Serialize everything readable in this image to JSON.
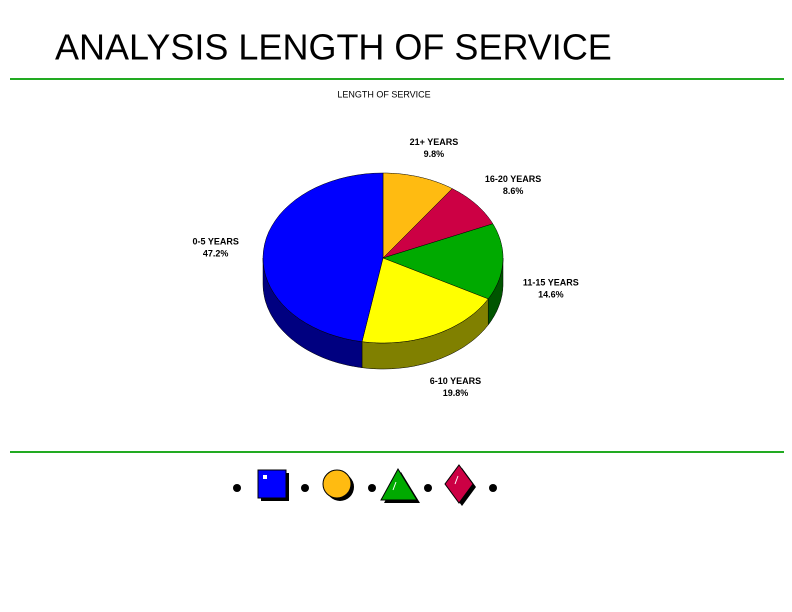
{
  "slide_title": "ANALYSIS LENGTH OF SERVICE",
  "chart_data": {
    "type": "pie3d",
    "title": "LENGTH OF SERVICE",
    "categories": [
      "21+ YEARS",
      "16-20 YEARS",
      "11-15 YEARS",
      "6-10 YEARS",
      "0-5 YEARS"
    ],
    "values": [
      9.8,
      8.6,
      14.6,
      19.8,
      47.2
    ],
    "value_labels": [
      "9.8%",
      "8.6%",
      "14.6%",
      "19.8%",
      "47.2%"
    ],
    "colors": [
      "#ffbb11",
      "#cc0044",
      "#00aa00",
      "#ffff00",
      "#0000ff"
    ]
  }
}
